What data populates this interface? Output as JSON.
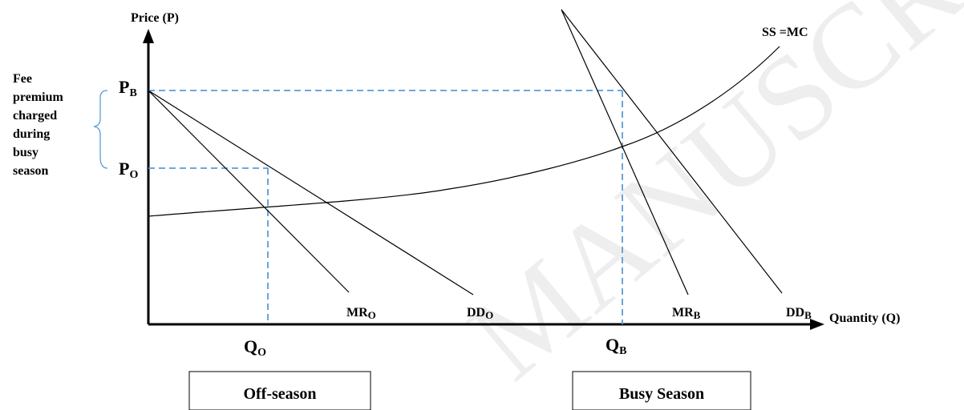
{
  "axes": {
    "y_label": "Price (P)",
    "x_label": "Quantity (Q)"
  },
  "price_labels": {
    "busy": {
      "main": "P",
      "sub": "B"
    },
    "off": {
      "main": "P",
      "sub": "O"
    }
  },
  "quantity_labels": {
    "off": {
      "main": "Q",
      "sub": "O"
    },
    "busy": {
      "main": "Q",
      "sub": "B"
    }
  },
  "curve_labels": {
    "supply": "SS =MC",
    "mr_off": {
      "main": "MR",
      "sub": "O"
    },
    "dd_off": {
      "main": "DD",
      "sub": "O"
    },
    "mr_busy": {
      "main": "MR",
      "sub": "B"
    },
    "dd_busy": {
      "main": "DD",
      "sub": "B"
    }
  },
  "fee_note": [
    "Fee",
    "premium",
    "charged",
    "during",
    "busy",
    "season"
  ],
  "boxes": {
    "off_season": "Off-season",
    "busy_season": "Busy Season"
  },
  "watermark": "MANUSCRIPT",
  "colors": {
    "guide": "#5b9bd5",
    "brace": "#5b9bd5",
    "line": "#000000",
    "watermark": "#eeeeee"
  }
}
